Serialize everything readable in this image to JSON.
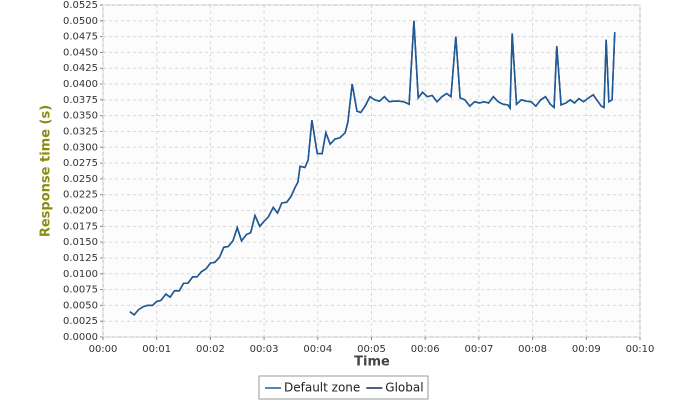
{
  "chart_data": {
    "type": "line",
    "xlabel": "Time",
    "ylabel": "Response time (s)",
    "xlim": [
      0,
      10
    ],
    "ylim": [
      0,
      0.0525
    ],
    "xticks": [
      {
        "value": 0,
        "label": "00:00"
      },
      {
        "value": 1,
        "label": "00:01"
      },
      {
        "value": 2,
        "label": "00:02"
      },
      {
        "value": 3,
        "label": "00:03"
      },
      {
        "value": 4,
        "label": "00:04"
      },
      {
        "value": 5,
        "label": "00:05"
      },
      {
        "value": 6,
        "label": "00:06"
      },
      {
        "value": 7,
        "label": "00:07"
      },
      {
        "value": 8,
        "label": "00:08"
      },
      {
        "value": 9,
        "label": "00:09"
      },
      {
        "value": 10,
        "label": "00:10"
      }
    ],
    "yticks": [
      {
        "value": 0,
        "label": "0.0000"
      },
      {
        "value": 0.0025,
        "label": "0.0025"
      },
      {
        "value": 0.005,
        "label": "0.0050"
      },
      {
        "value": 0.0075,
        "label": "0.0075"
      },
      {
        "value": 0.01,
        "label": "0.0100"
      },
      {
        "value": 0.0125,
        "label": "0.0125"
      },
      {
        "value": 0.015,
        "label": "0.0150"
      },
      {
        "value": 0.0175,
        "label": "0.0175"
      },
      {
        "value": 0.02,
        "label": "0.0200"
      },
      {
        "value": 0.0225,
        "label": "0.0225"
      },
      {
        "value": 0.025,
        "label": "0.0250"
      },
      {
        "value": 0.0275,
        "label": "0.0275"
      },
      {
        "value": 0.03,
        "label": "0.0300"
      },
      {
        "value": 0.0325,
        "label": "0.0325"
      },
      {
        "value": 0.035,
        "label": "0.0350"
      },
      {
        "value": 0.0375,
        "label": "0.0375"
      },
      {
        "value": 0.04,
        "label": "0.0400"
      },
      {
        "value": 0.0425,
        "label": "0.0425"
      },
      {
        "value": 0.045,
        "label": "0.0450"
      },
      {
        "value": 0.0475,
        "label": "0.0475"
      },
      {
        "value": 0.05,
        "label": "0.0500"
      },
      {
        "value": 0.0525,
        "label": "0.0525"
      }
    ],
    "grid": true,
    "x": [
      0.5,
      0.58,
      0.66,
      0.75,
      0.83,
      0.92,
      1.0,
      1.08,
      1.17,
      1.25,
      1.33,
      1.42,
      1.5,
      1.58,
      1.67,
      1.75,
      1.83,
      1.92,
      2.0,
      2.08,
      2.17,
      2.25,
      2.33,
      2.42,
      2.5,
      2.58,
      2.67,
      2.75,
      2.83,
      2.92,
      3.0,
      3.08,
      3.17,
      3.25,
      3.33,
      3.42,
      3.5,
      3.58,
      3.63,
      3.67,
      3.76,
      3.82,
      3.89,
      3.99,
      4.08,
      4.15,
      4.23,
      4.32,
      4.41,
      4.51,
      4.56,
      4.64,
      4.73,
      4.8,
      4.88,
      4.97,
      5.06,
      5.15,
      5.24,
      5.33,
      5.42,
      5.51,
      5.6,
      5.7,
      5.79,
      5.87,
      5.95,
      6.04,
      6.13,
      6.22,
      6.31,
      6.4,
      6.48,
      6.57,
      6.65,
      6.74,
      6.83,
      6.92,
      7.01,
      7.1,
      7.18,
      7.27,
      7.36,
      7.45,
      7.54,
      7.58,
      7.62,
      7.7,
      7.79,
      7.88,
      7.97,
      8.06,
      8.15,
      8.24,
      8.33,
      8.4,
      8.45,
      8.53,
      8.62,
      8.7,
      8.78,
      8.86,
      8.95,
      9.04,
      9.13,
      9.22,
      9.28,
      9.33,
      9.37,
      9.42,
      9.48,
      9.53
    ],
    "series": [
      {
        "name": "Default zone",
        "color": "#1f5a96",
        "values": [
          0.004,
          0.0035,
          0.0043,
          0.0048,
          0.005,
          0.005,
          0.0056,
          0.0058,
          0.0068,
          0.0063,
          0.0073,
          0.0073,
          0.0085,
          0.0085,
          0.0095,
          0.0095,
          0.0103,
          0.0108,
          0.0117,
          0.0118,
          0.0126,
          0.0142,
          0.0143,
          0.0152,
          0.0173,
          0.0152,
          0.0162,
          0.0165,
          0.0192,
          0.0175,
          0.0183,
          0.019,
          0.0205,
          0.0196,
          0.0212,
          0.0213,
          0.0222,
          0.0237,
          0.0245,
          0.027,
          0.0268,
          0.028,
          0.0343,
          0.029,
          0.029,
          0.0323,
          0.0305,
          0.0313,
          0.0315,
          0.0323,
          0.034,
          0.04,
          0.0357,
          0.0355,
          0.0365,
          0.038,
          0.0375,
          0.0373,
          0.038,
          0.0372,
          0.0373,
          0.0373,
          0.0372,
          0.0368,
          0.05,
          0.0378,
          0.0387,
          0.038,
          0.0382,
          0.0372,
          0.038,
          0.0385,
          0.038,
          0.0475,
          0.0378,
          0.0375,
          0.0365,
          0.0372,
          0.037,
          0.0372,
          0.037,
          0.038,
          0.0372,
          0.0368,
          0.0367,
          0.0362,
          0.048,
          0.0368,
          0.0375,
          0.0373,
          0.0372,
          0.0365,
          0.0375,
          0.038,
          0.0368,
          0.0363,
          0.046,
          0.0367,
          0.037,
          0.0375,
          0.037,
          0.0377,
          0.0372,
          0.0378,
          0.0383,
          0.0372,
          0.0365,
          0.0363,
          0.047,
          0.0372,
          0.0375,
          0.0482
        ]
      },
      {
        "name": "Global",
        "color": "#1a2a5a",
        "values": [
          0.004,
          0.0035,
          0.0043,
          0.0048,
          0.005,
          0.005,
          0.0056,
          0.0058,
          0.0068,
          0.0063,
          0.0073,
          0.0073,
          0.0085,
          0.0085,
          0.0095,
          0.0095,
          0.0103,
          0.0108,
          0.0117,
          0.0118,
          0.0126,
          0.0142,
          0.0143,
          0.0152,
          0.0173,
          0.0152,
          0.0162,
          0.0165,
          0.0192,
          0.0175,
          0.0183,
          0.019,
          0.0205,
          0.0196,
          0.0212,
          0.0213,
          0.0222,
          0.0237,
          0.0245,
          0.027,
          0.0268,
          0.028,
          0.0343,
          0.029,
          0.029,
          0.0323,
          0.0305,
          0.0313,
          0.0315,
          0.0323,
          0.034,
          0.04,
          0.0357,
          0.0355,
          0.0365,
          0.038,
          0.0375,
          0.0373,
          0.038,
          0.0372,
          0.0373,
          0.0373,
          0.0372,
          0.0368,
          0.05,
          0.0378,
          0.0387,
          0.038,
          0.0382,
          0.0372,
          0.038,
          0.0385,
          0.038,
          0.0475,
          0.0378,
          0.0375,
          0.0365,
          0.0372,
          0.037,
          0.0372,
          0.037,
          0.038,
          0.0372,
          0.0368,
          0.0367,
          0.0362,
          0.048,
          0.0368,
          0.0375,
          0.0373,
          0.0372,
          0.0365,
          0.0375,
          0.038,
          0.0368,
          0.0363,
          0.046,
          0.0367,
          0.037,
          0.0375,
          0.037,
          0.0377,
          0.0372,
          0.0378,
          0.0383,
          0.0372,
          0.0365,
          0.0363,
          0.047,
          0.0372,
          0.0375,
          0.0482
        ]
      }
    ]
  }
}
